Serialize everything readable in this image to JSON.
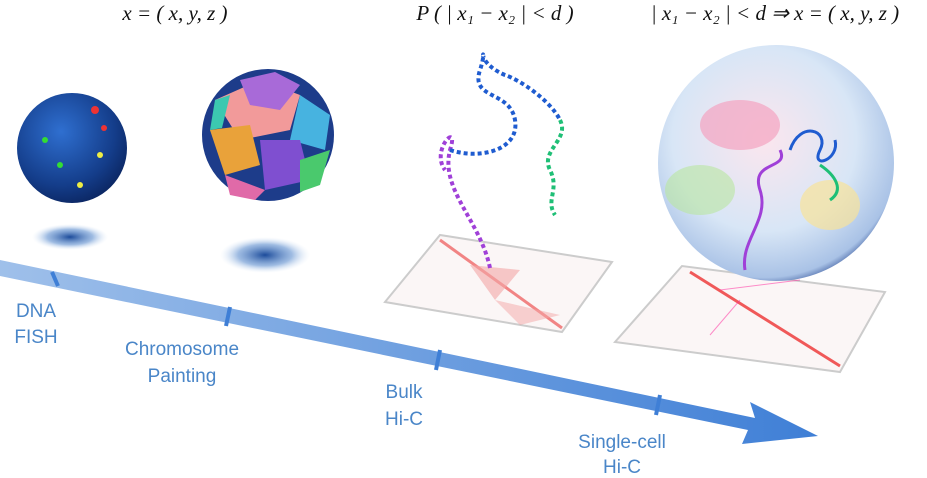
{
  "formulas": [
    "x = ( x, y, z )",
    "P ( | x₁ − x₂ | < d )",
    "| x₁ − x₂ | < d ⇒ x = ( x, y, z )"
  ],
  "labels": [
    [
      "DNA",
      "FISH"
    ],
    [
      "Chromosome",
      "Painting"
    ],
    [
      "Bulk",
      "Hi-C"
    ],
    [
      "Single-cell",
      "Hi-C"
    ]
  ]
}
